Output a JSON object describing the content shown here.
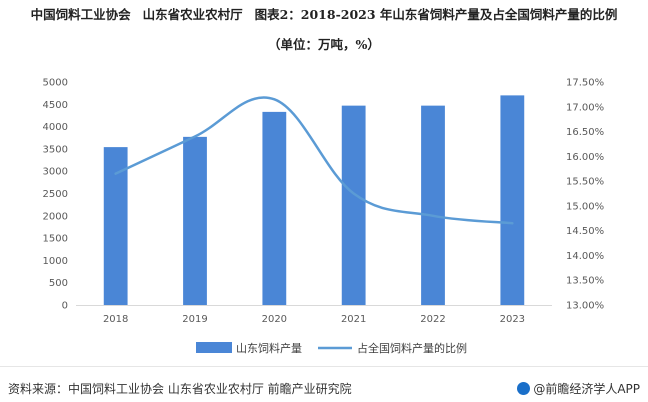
{
  "header": {
    "source_org": "中国饲料工业协会",
    "dept": "山东省农业农村厅",
    "figure_title": "图表2：2018-2023 年山东省饲料产量及占全国饲料产量的比例",
    "units": "（单位：万吨，%）"
  },
  "footer": {
    "source": "资料来源：中国饲料工业协会 山东省农业农村厅 前瞻产业研究院",
    "brand": "@前瞻经济学人APP"
  },
  "colors": {
    "bar": "#4a86d6",
    "line": "#5b9bd5",
    "text": "#595959",
    "grid": "#d9d9d9"
  },
  "icons": [
    "brand-logo-icon"
  ],
  "chart_data": {
    "type": "bar",
    "categories": [
      "2018",
      "2019",
      "2020",
      "2021",
      "2022",
      "2023"
    ],
    "series": [
      {
        "name": "山东饲料产量",
        "type": "bar",
        "axis": "left",
        "values": [
          3540,
          3770,
          4330,
          4470,
          4470,
          4700
        ]
      },
      {
        "name": "占全国饲料产量的比例",
        "type": "line",
        "axis": "right",
        "values": [
          15.65,
          16.4,
          17.15,
          15.25,
          14.8,
          14.65
        ]
      }
    ],
    "y_left": {
      "range": [
        0,
        5000
      ],
      "ticks": [
        "0",
        "500",
        "1000",
        "1500",
        "2000",
        "2500",
        "3000",
        "3500",
        "4000",
        "4500",
        "5000"
      ]
    },
    "y_right": {
      "range": [
        13.0,
        17.5
      ],
      "ticks": [
        "13.00%",
        "13.50%",
        "14.00%",
        "14.50%",
        "15.00%",
        "15.50%",
        "16.00%",
        "16.50%",
        "17.00%",
        "17.50%"
      ]
    },
    "grid": false,
    "legend_position": "bottom"
  }
}
